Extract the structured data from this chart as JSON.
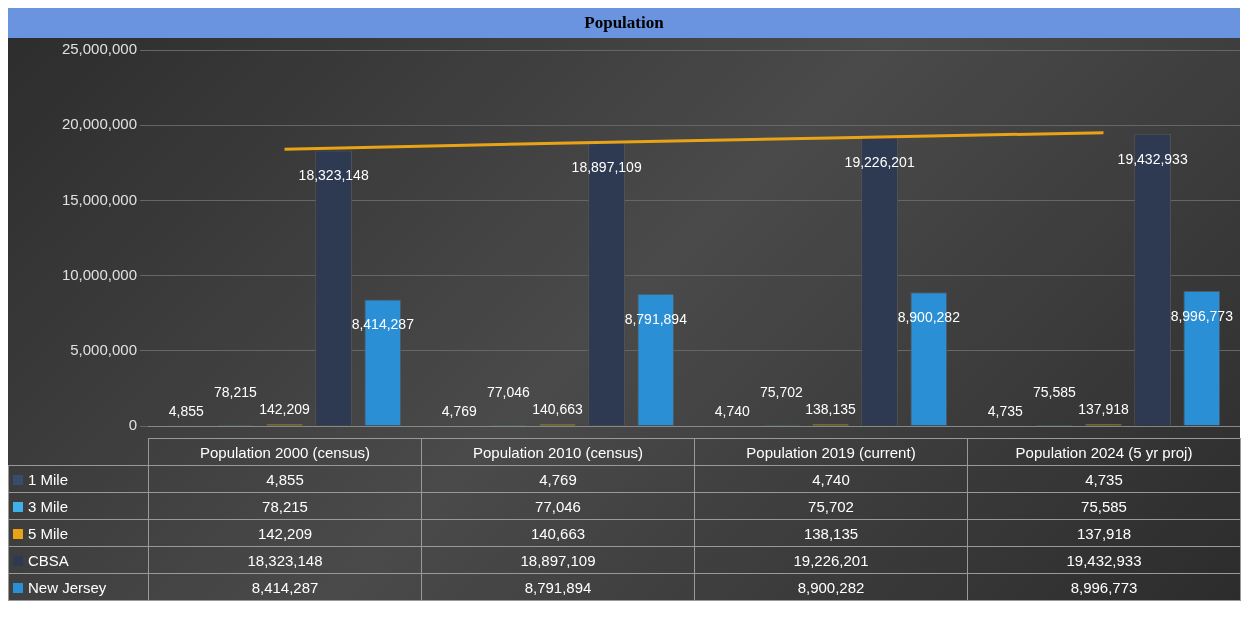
{
  "chart_data": {
    "type": "bar",
    "title": "Population",
    "categories": [
      "Population 2000 (census)",
      "Population 2010 (census)",
      "Population 2019 (current)",
      "Population 2024 (5 yr proj)"
    ],
    "series": [
      {
        "name": "1 Mile",
        "color": "#3a4b6e",
        "values": [
          4855,
          4769,
          4740,
          4735
        ],
        "value_labels": [
          "4,855",
          "4,769",
          "4,740",
          "4,735"
        ]
      },
      {
        "name": "3 Mile",
        "color": "#3fb0e8",
        "values": [
          78215,
          77046,
          75702,
          75585
        ],
        "value_labels": [
          "78,215",
          "77,046",
          "75,702",
          "75,585"
        ]
      },
      {
        "name": "5 Mile",
        "color": "#e8a317",
        "values": [
          142209,
          140663,
          138135,
          137918
        ],
        "value_labels": [
          "142,209",
          "140,663",
          "138,135",
          "137,918"
        ]
      },
      {
        "name": "CBSA",
        "color": "#2e3a52",
        "values": [
          18323148,
          18897109,
          19226201,
          19432933
        ],
        "value_labels": [
          "18,323,148",
          "18,897,109",
          "19,226,201",
          "19,432,933"
        ]
      },
      {
        "name": "New Jersey",
        "color": "#2b8fd6",
        "values": [
          8414287,
          8791894,
          8900282,
          8996773
        ],
        "value_labels": [
          "8,414,287",
          "8,791,894",
          "8,900,282",
          "8,996,773"
        ]
      },
      {
        "type": "line",
        "color": "#e8a317",
        "values": [
          18400000,
          18800000,
          19150000,
          19500000
        ]
      }
    ],
    "ylim": [
      0,
      25000000
    ],
    "yticks": [
      {
        "value": 0,
        "label": "0"
      },
      {
        "value": 5000000,
        "label": "5,000,000"
      },
      {
        "value": 10000000,
        "label": "10,000,000"
      },
      {
        "value": 15000000,
        "label": "15,000,000"
      },
      {
        "value": 20000000,
        "label": "20,000,000"
      },
      {
        "value": 25000000,
        "label": "25,000,000"
      }
    ],
    "grid": "y",
    "legend": "bottom"
  }
}
